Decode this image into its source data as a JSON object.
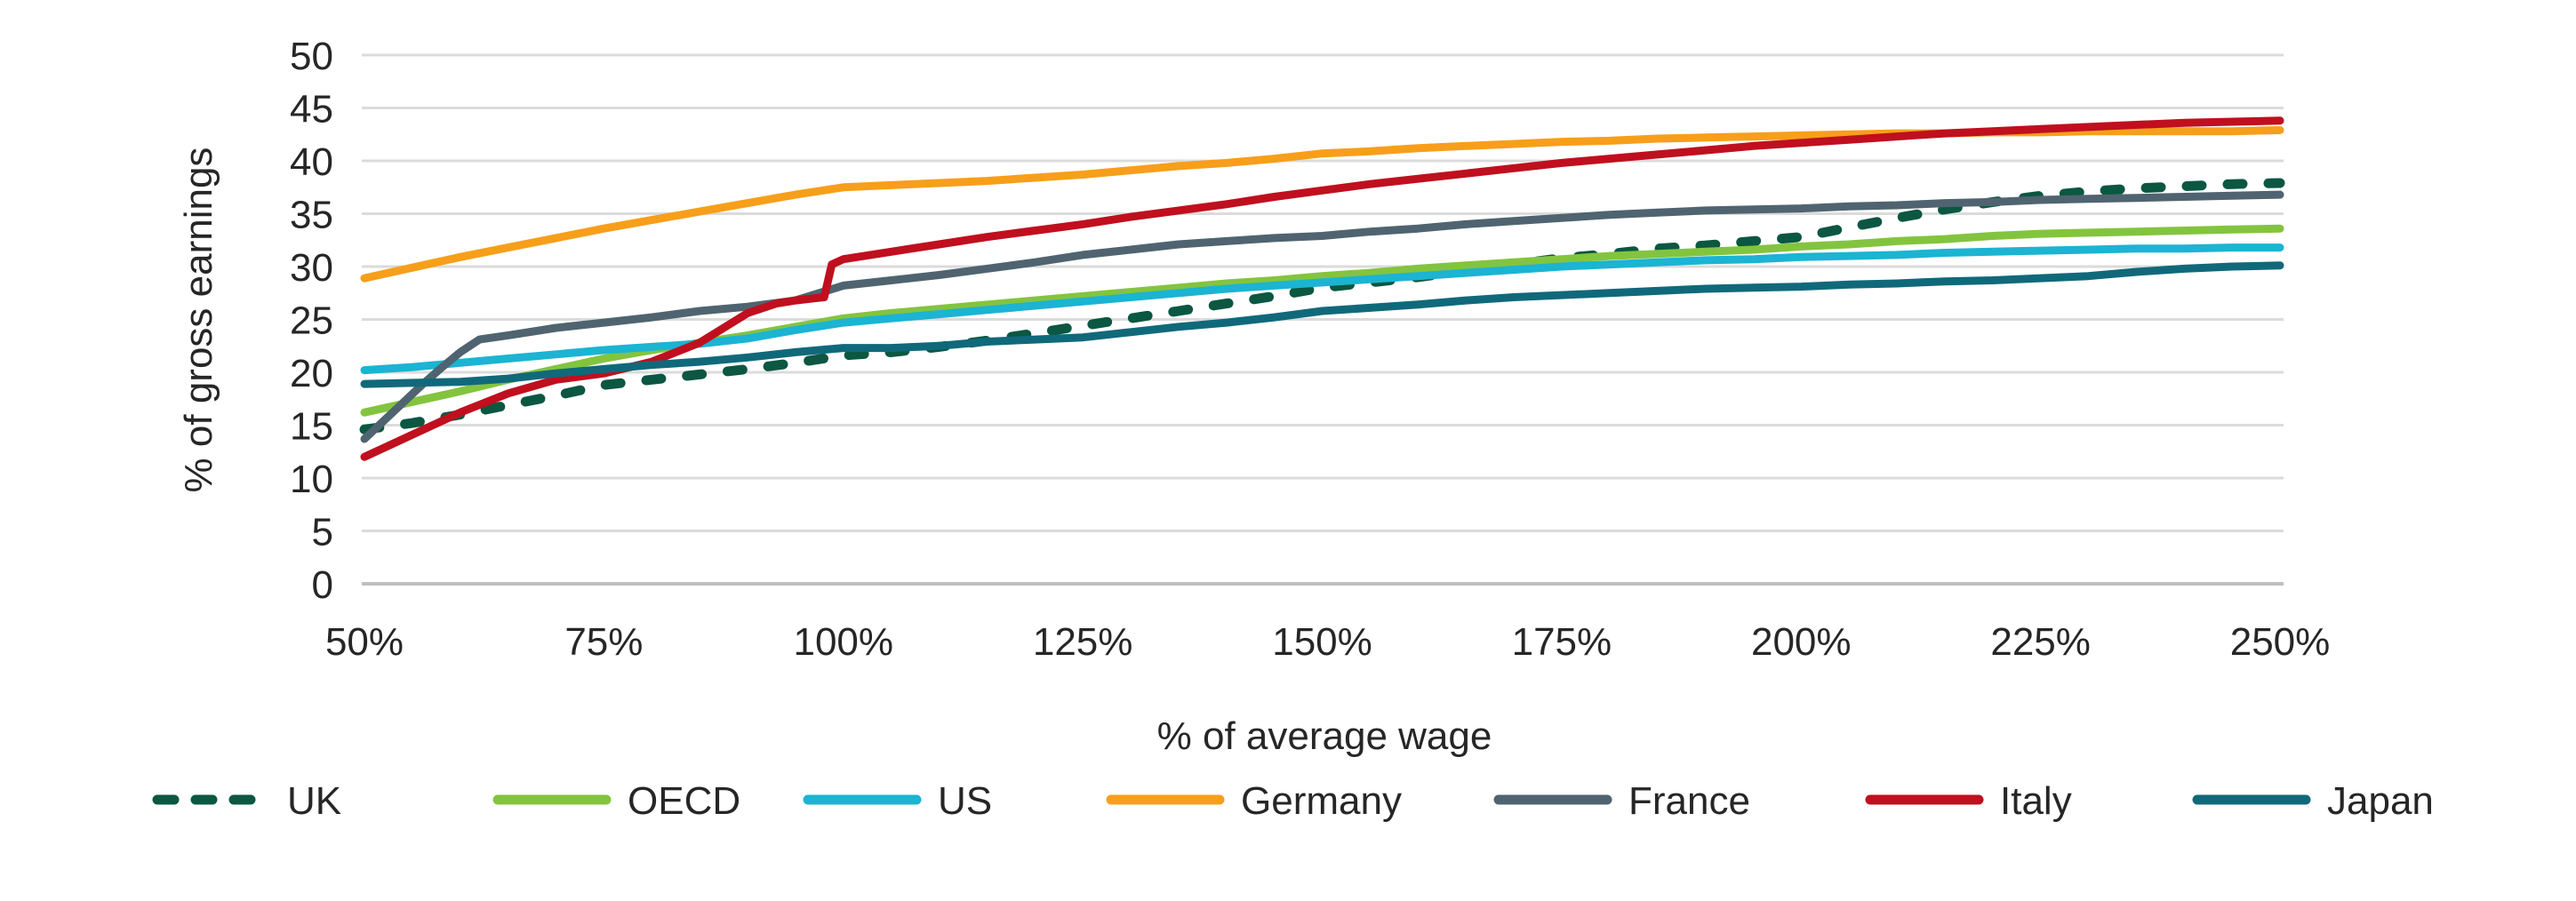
{
  "chart_data": {
    "type": "line",
    "title": "",
    "xlabel": "% of average wage",
    "ylabel": "% of gross earnings",
    "xlim": [
      50,
      250
    ],
    "ylim": [
      0,
      50
    ],
    "y_ticks": [
      0,
      5,
      10,
      15,
      20,
      25,
      30,
      35,
      40,
      45,
      50
    ],
    "x_tick_values": [
      50,
      75,
      100,
      125,
      150,
      175,
      200,
      225,
      250
    ],
    "x_ticks": [
      "50%",
      "75%",
      "100%",
      "125%",
      "150%",
      "175%",
      "200%",
      "225%",
      "250%"
    ],
    "grid": "horizontal",
    "legend_position": "bottom",
    "style": {
      "background": "#FFFFFF",
      "grid_color": "#DBDBDB",
      "axis_color": "#BFBFBF",
      "text_color": "#262626"
    },
    "series": [
      {
        "name": "UK",
        "color": "#0B5741",
        "dashed": true,
        "x": [
          50,
          55,
          60,
          65,
          70,
          75,
          80,
          85,
          90,
          95,
          100,
          105,
          110,
          115,
          120,
          125,
          130,
          135,
          140,
          145,
          150,
          155,
          160,
          165,
          170,
          175,
          180,
          185,
          190,
          195,
          200,
          205,
          210,
          215,
          220,
          225,
          230,
          235,
          240,
          245,
          250
        ],
        "values": [
          14.6,
          15.2,
          16.0,
          16.9,
          17.8,
          18.8,
          19.3,
          19.8,
          20.3,
          20.9,
          21.6,
          21.9,
          22.4,
          23.0,
          23.7,
          24.4,
          25.1,
          25.8,
          26.5,
          27.2,
          28.0,
          28.5,
          29.0,
          29.6,
          30.2,
          30.8,
          31.2,
          31.7,
          32.0,
          32.4,
          32.8,
          33.7,
          34.6,
          35.4,
          36.1,
          36.7,
          37.1,
          37.4,
          37.6,
          37.8,
          37.9
        ]
      },
      {
        "name": "OECD",
        "color": "#83C43F",
        "dashed": false,
        "x": [
          50,
          55,
          60,
          65,
          70,
          75,
          80,
          85,
          90,
          95,
          100,
          105,
          110,
          115,
          120,
          125,
          130,
          135,
          140,
          145,
          150,
          155,
          160,
          165,
          170,
          175,
          180,
          185,
          190,
          195,
          200,
          205,
          210,
          215,
          220,
          225,
          230,
          235,
          240,
          245,
          250
        ],
        "values": [
          16.2,
          17.2,
          18.2,
          19.3,
          20.3,
          21.3,
          22.1,
          22.8,
          23.5,
          24.3,
          25.1,
          25.6,
          26.0,
          26.4,
          26.8,
          27.2,
          27.6,
          28.0,
          28.4,
          28.7,
          29.1,
          29.4,
          29.8,
          30.1,
          30.4,
          30.7,
          31.0,
          31.2,
          31.4,
          31.6,
          31.9,
          32.1,
          32.4,
          32.6,
          32.9,
          33.1,
          33.2,
          33.3,
          33.4,
          33.5,
          33.6
        ]
      },
      {
        "name": "US",
        "color": "#1BB4D2",
        "dashed": false,
        "x": [
          50,
          55,
          60,
          65,
          70,
          75,
          80,
          85,
          90,
          95,
          100,
          105,
          110,
          115,
          120,
          125,
          130,
          135,
          140,
          145,
          150,
          155,
          160,
          165,
          170,
          175,
          180,
          185,
          190,
          195,
          200,
          205,
          210,
          215,
          220,
          225,
          230,
          235,
          240,
          245,
          250
        ],
        "values": [
          20.2,
          20.5,
          20.9,
          21.3,
          21.7,
          22.1,
          22.4,
          22.7,
          23.2,
          24.0,
          24.7,
          25.1,
          25.5,
          25.9,
          26.3,
          26.7,
          27.1,
          27.5,
          27.9,
          28.2,
          28.5,
          28.8,
          29.1,
          29.4,
          29.7,
          30.0,
          30.2,
          30.4,
          30.6,
          30.7,
          30.9,
          31.0,
          31.1,
          31.3,
          31.4,
          31.5,
          31.6,
          31.7,
          31.7,
          31.8,
          31.8
        ]
      },
      {
        "name": "Germany",
        "color": "#F79F1A",
        "dashed": false,
        "x": [
          50,
          55,
          60,
          65,
          70,
          75,
          80,
          85,
          90,
          95,
          100,
          105,
          110,
          115,
          120,
          125,
          130,
          135,
          140,
          145,
          150,
          155,
          160,
          165,
          170,
          175,
          180,
          185,
          190,
          195,
          200,
          205,
          210,
          215,
          220,
          225,
          230,
          235,
          240,
          245,
          250
        ],
        "values": [
          28.9,
          29.9,
          30.9,
          31.8,
          32.7,
          33.6,
          34.4,
          35.2,
          36.0,
          36.8,
          37.5,
          37.7,
          37.9,
          38.1,
          38.4,
          38.7,
          39.1,
          39.5,
          39.8,
          40.2,
          40.7,
          40.9,
          41.2,
          41.4,
          41.6,
          41.8,
          41.9,
          42.1,
          42.2,
          42.3,
          42.4,
          42.5,
          42.6,
          42.6,
          42.7,
          42.7,
          42.8,
          42.8,
          42.8,
          42.8,
          42.9
        ]
      },
      {
        "name": "France",
        "color": "#4F6470",
        "dashed": false,
        "x": [
          50,
          52,
          54,
          56,
          58,
          60,
          62,
          65,
          70,
          75,
          80,
          85,
          90,
          95,
          100,
          105,
          110,
          115,
          120,
          125,
          130,
          135,
          140,
          145,
          150,
          155,
          160,
          165,
          170,
          175,
          180,
          185,
          190,
          195,
          200,
          205,
          210,
          215,
          220,
          225,
          230,
          235,
          240,
          245,
          250
        ],
        "values": [
          13.7,
          15.4,
          17.1,
          18.8,
          20.4,
          21.9,
          23.1,
          23.5,
          24.2,
          24.7,
          25.2,
          25.8,
          26.2,
          26.8,
          28.2,
          28.7,
          29.2,
          29.8,
          30.4,
          31.1,
          31.6,
          32.1,
          32.4,
          32.7,
          32.9,
          33.3,
          33.6,
          34.0,
          34.3,
          34.6,
          34.9,
          35.1,
          35.3,
          35.4,
          35.5,
          35.7,
          35.8,
          36.0,
          36.1,
          36.3,
          36.4,
          36.5,
          36.6,
          36.7,
          36.8
        ]
      },
      {
        "name": "Italy",
        "color": "#C00F1E",
        "dashed": false,
        "x": [
          50,
          55,
          60,
          65,
          70,
          75,
          80,
          85,
          90,
          93,
          95,
          97,
          98,
          98.8,
          100,
          105,
          110,
          115,
          120,
          125,
          130,
          135,
          140,
          145,
          150,
          155,
          160,
          165,
          170,
          175,
          180,
          185,
          190,
          195,
          200,
          205,
          210,
          215,
          220,
          225,
          230,
          235,
          240,
          245,
          250
        ],
        "values": [
          12.0,
          14.1,
          16.2,
          18.0,
          19.3,
          19.9,
          21.0,
          22.8,
          25.6,
          26.5,
          26.8,
          27.0,
          27.1,
          30.2,
          30.7,
          31.4,
          32.1,
          32.8,
          33.4,
          34.0,
          34.7,
          35.3,
          35.9,
          36.6,
          37.2,
          37.8,
          38.3,
          38.8,
          39.3,
          39.8,
          40.2,
          40.6,
          41.0,
          41.4,
          41.7,
          42.0,
          42.3,
          42.6,
          42.8,
          43.0,
          43.2,
          43.4,
          43.6,
          43.7,
          43.8
        ]
      },
      {
        "name": "Japan",
        "color": "#10697A",
        "dashed": false,
        "x": [
          50,
          55,
          60,
          65,
          70,
          75,
          80,
          85,
          90,
          95,
          100,
          105,
          110,
          115,
          120,
          125,
          130,
          135,
          140,
          145,
          150,
          155,
          160,
          165,
          170,
          175,
          180,
          185,
          190,
          195,
          200,
          205,
          210,
          215,
          220,
          225,
          230,
          235,
          240,
          245,
          250
        ],
        "values": [
          18.9,
          19.0,
          19.1,
          19.4,
          19.9,
          20.3,
          20.7,
          21.0,
          21.4,
          21.9,
          22.3,
          22.3,
          22.5,
          22.9,
          23.1,
          23.3,
          23.8,
          24.3,
          24.7,
          25.2,
          25.8,
          26.1,
          26.4,
          26.8,
          27.1,
          27.3,
          27.5,
          27.7,
          27.9,
          28.0,
          28.1,
          28.3,
          28.4,
          28.6,
          28.7,
          28.9,
          29.1,
          29.5,
          29.8,
          30.0,
          30.1
        ]
      }
    ]
  }
}
